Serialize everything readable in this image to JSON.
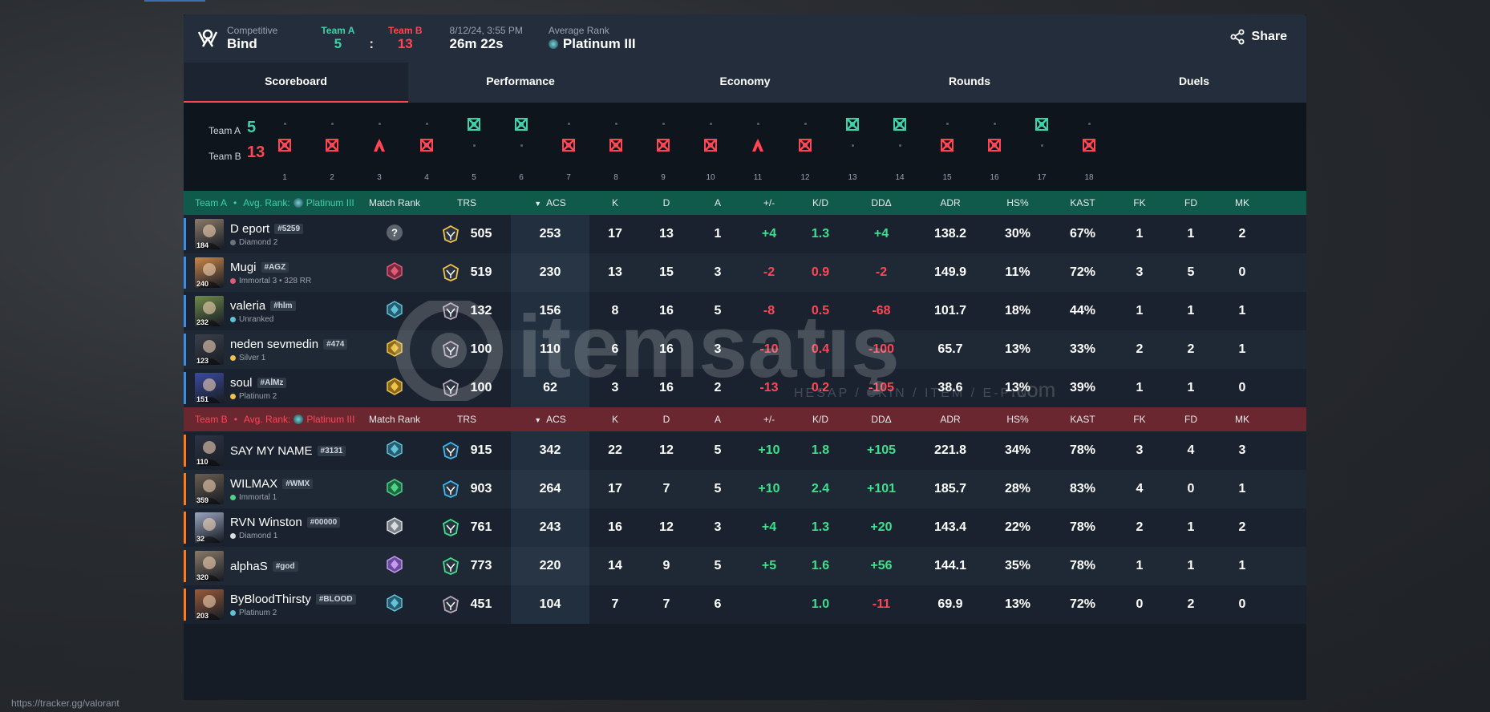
{
  "header": {
    "mode_label": "Competitive",
    "map": "Bind",
    "team_a_label": "Team A",
    "team_b_label": "Team B",
    "team_a_score": "5",
    "team_b_score": "13",
    "colon": ":",
    "date": "8/12/24, 3:55 PM",
    "duration": "26m 22s",
    "avg_rank_label": "Average Rank",
    "avg_rank": "Platinum III",
    "share_label": "Share"
  },
  "tabs": [
    {
      "label": "Scoreboard",
      "active": true
    },
    {
      "label": "Performance"
    },
    {
      "label": "Economy"
    },
    {
      "label": "Rounds"
    },
    {
      "label": "Duels"
    }
  ],
  "timeline": {
    "team_a_label": "Team A",
    "team_b_label": "Team B",
    "team_a_score": "5",
    "team_b_score": "13",
    "rounds": [
      {
        "n": "1",
        "winner": "B",
        "icon": "elimination"
      },
      {
        "n": "2",
        "winner": "B",
        "icon": "elimination"
      },
      {
        "n": "3",
        "winner": "B",
        "icon": "defuse"
      },
      {
        "n": "4",
        "winner": "B",
        "icon": "elimination"
      },
      {
        "n": "5",
        "winner": "A",
        "icon": "elimination"
      },
      {
        "n": "6",
        "winner": "A",
        "icon": "elimination"
      },
      {
        "n": "7",
        "winner": "B",
        "icon": "elimination"
      },
      {
        "n": "8",
        "winner": "B",
        "icon": "elimination"
      },
      {
        "n": "9",
        "winner": "B",
        "icon": "elimination"
      },
      {
        "n": "10",
        "winner": "B",
        "icon": "elimination"
      },
      {
        "n": "11",
        "winner": "B",
        "icon": "defuse"
      },
      {
        "n": "12",
        "winner": "B",
        "icon": "elimination"
      },
      {
        "n": "13",
        "winner": "A",
        "icon": "elimination"
      },
      {
        "n": "14",
        "winner": "A",
        "icon": "elimination"
      },
      {
        "n": "15",
        "winner": "B",
        "icon": "elimination"
      },
      {
        "n": "16",
        "winner": "B",
        "icon": "elimination"
      },
      {
        "n": "17",
        "winner": "A",
        "icon": "elimination"
      },
      {
        "n": "18",
        "winner": "B",
        "icon": "elimination"
      }
    ]
  },
  "columns": [
    "Match Rank",
    "TRS",
    "ACS",
    "K",
    "D",
    "A",
    "+/-",
    "K/D",
    "DDΔ",
    "ADR",
    "HS%",
    "KAST",
    "FK",
    "FD",
    "MK"
  ],
  "team_a": {
    "label": "Team A",
    "avg_rank_label": "Avg. Rank:",
    "avg_rank": "Platinum III",
    "bullet": "•",
    "players": [
      {
        "name": "D eport",
        "tag": "#5259",
        "rank": "Diamond 2",
        "level": "184",
        "match_rank": "unknown",
        "trs": "505",
        "acs": "253",
        "k": "17",
        "d": "13",
        "a": "1",
        "pm": "+4",
        "kd": "1.3",
        "dd": "+4",
        "adr": "138.2",
        "hs": "30%",
        "kast": "67%",
        "fk": "1",
        "fd": "1",
        "mk": "2",
        "avatar": "#8a7a68"
      },
      {
        "name": "Mugi",
        "tag": "#AGZ",
        "rank": "Immortal 3 • 328 RR",
        "level": "240",
        "match_rank": "immortal",
        "trs": "519",
        "acs": "230",
        "k": "13",
        "d": "15",
        "a": "3",
        "pm": "-2",
        "kd": "0.9",
        "dd": "-2",
        "adr": "149.9",
        "hs": "11%",
        "kast": "72%",
        "fk": "3",
        "fd": "5",
        "mk": "0",
        "avatar": "#c9864a"
      },
      {
        "name": "valeria",
        "tag": "#hlm",
        "rank": "Unranked",
        "level": "232",
        "match_rank": "platinum",
        "trs": "132",
        "acs": "156",
        "k": "8",
        "d": "16",
        "a": "5",
        "pm": "-8",
        "kd": "0.5",
        "dd": "-68",
        "adr": "101.7",
        "hs": "18%",
        "kast": "44%",
        "fk": "1",
        "fd": "1",
        "mk": "1",
        "avatar": "#6f8a4a"
      },
      {
        "name": "neden sevmedin",
        "tag": "#474",
        "rank": "Silver 1",
        "level": "123",
        "match_rank": "gold",
        "trs": "100",
        "acs": "110",
        "k": "6",
        "d": "16",
        "a": "3",
        "pm": "-10",
        "kd": "0.4",
        "dd": "-100",
        "adr": "65.7",
        "hs": "13%",
        "kast": "33%",
        "fk": "2",
        "fd": "2",
        "mk": "1",
        "avatar": "#3a3f4a"
      },
      {
        "name": "soul",
        "tag": "#AİMz",
        "rank": "Platinum 2",
        "level": "151",
        "match_rank": "gold",
        "trs": "100",
        "acs": "62",
        "k": "3",
        "d": "16",
        "a": "2",
        "pm": "-13",
        "kd": "0.2",
        "dd": "-105",
        "adr": "38.6",
        "hs": "13%",
        "kast": "39%",
        "fk": "1",
        "fd": "1",
        "mk": "0",
        "avatar": "#3a4aa0"
      }
    ]
  },
  "team_b": {
    "label": "Team B",
    "avg_rank_label": "Avg. Rank:",
    "avg_rank": "Platinum III",
    "bullet": "•",
    "players": [
      {
        "name": "SAY MY NAME",
        "tag": "#3131",
        "rank": "",
        "level": "110",
        "match_rank": "platinum",
        "trs": "915",
        "acs": "342",
        "k": "22",
        "d": "12",
        "a": "5",
        "pm": "+10",
        "kd": "1.8",
        "dd": "+105",
        "adr": "221.8",
        "hs": "34%",
        "kast": "78%",
        "fk": "3",
        "fd": "4",
        "mk": "3",
        "avatar": "#2e3344"
      },
      {
        "name": "WILMAX",
        "tag": "#WMX",
        "rank": "Immortal 1",
        "level": "359",
        "match_rank": "ascendant",
        "trs": "903",
        "acs": "264",
        "k": "17",
        "d": "7",
        "a": "5",
        "pm": "+10",
        "kd": "2.4",
        "dd": "+101",
        "adr": "185.7",
        "hs": "28%",
        "kast": "83%",
        "fk": "4",
        "fd": "0",
        "mk": "1",
        "avatar": "#6a5e50"
      },
      {
        "name": "RVN Winston",
        "tag": "#00000",
        "rank": "Diamond 1",
        "level": "32",
        "match_rank": "silver",
        "trs": "761",
        "acs": "243",
        "k": "16",
        "d": "12",
        "a": "3",
        "pm": "+4",
        "kd": "1.3",
        "dd": "+20",
        "adr": "143.4",
        "hs": "22%",
        "kast": "78%",
        "fk": "2",
        "fd": "1",
        "mk": "2",
        "avatar": "#9aa6c0"
      },
      {
        "name": "alphaS",
        "tag": "#god",
        "rank": "",
        "level": "320",
        "match_rank": "diamond",
        "trs": "773",
        "acs": "220",
        "k": "14",
        "d": "9",
        "a": "5",
        "pm": "+5",
        "kd": "1.6",
        "dd": "+56",
        "adr": "144.1",
        "hs": "35%",
        "kast": "78%",
        "fk": "1",
        "fd": "1",
        "mk": "1",
        "avatar": "#8a7a68"
      },
      {
        "name": "ByBloodThirsty",
        "tag": "#BLOOD",
        "rank": "Platinum 2",
        "level": "203",
        "match_rank": "platinum",
        "trs": "451",
        "acs": "104",
        "k": "7",
        "d": "7",
        "a": "6",
        "pm": "",
        "kd": "1.0",
        "dd": "-11",
        "adr": "69.9",
        "hs": "13%",
        "kast": "72%",
        "fk": "0",
        "fd": "2",
        "mk": "0",
        "avatar": "#9a5a3a"
      }
    ]
  },
  "status_url": "https://tracker.gg/valorant",
  "colors": {
    "team_a": "#3fd1a8",
    "team_b": "#ff4655",
    "positive": "#3fe08d",
    "negative": "#ff4655"
  },
  "watermark": {
    "brand": "itemsatış",
    "tagline": "HESAP / SKIN / ITEM / E-PIN",
    "suffix": ".com"
  }
}
